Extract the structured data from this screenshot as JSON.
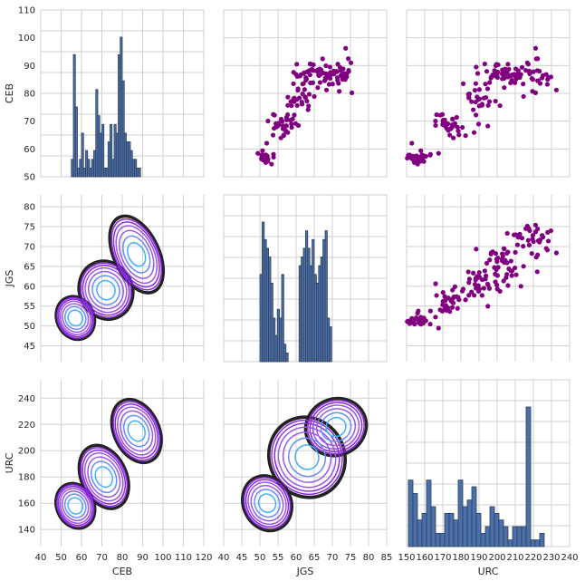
{
  "chart_data": {
    "type": "pairplot",
    "variables": [
      "CEB",
      "JGS",
      "URC"
    ],
    "axes": {
      "CEB": {
        "range": [
          40,
          120
        ],
        "ticks": [
          40,
          50,
          60,
          70,
          80,
          90,
          100,
          110,
          120
        ],
        "ylim": [
          50,
          110
        ],
        "yticks": [
          50,
          60,
          70,
          80,
          90,
          100,
          110
        ]
      },
      "JGS": {
        "range": [
          40,
          85
        ],
        "ticks": [
          40,
          45,
          50,
          55,
          60,
          65,
          70,
          75,
          80,
          85
        ],
        "ylim": [
          41,
          83
        ],
        "yticks": [
          45,
          50,
          55,
          60,
          65,
          70,
          75,
          80
        ]
      },
      "URC": {
        "range": [
          150,
          240
        ],
        "ticks": [
          150,
          160,
          170,
          180,
          190,
          200,
          210,
          220,
          230,
          240
        ],
        "ylim": [
          127,
          254
        ],
        "yticks": [
          140,
          160,
          180,
          200,
          220,
          240
        ]
      }
    },
    "diagonal_histograms": {
      "CEB": {
        "bin_start": 55,
        "bin_width": 1,
        "counts": [
          2,
          14,
          8,
          1,
          2,
          5,
          1,
          3,
          2,
          1,
          2,
          3,
          10,
          7,
          5,
          6,
          1,
          1,
          4,
          6,
          2,
          6,
          5,
          14,
          16,
          11,
          5,
          4,
          4,
          3,
          2,
          2,
          1,
          1
        ]
      },
      "JGS": {
        "bin_start": 50,
        "bin_width": 0.6,
        "counts": [
          10,
          16,
          14,
          13,
          12,
          9,
          5,
          3,
          6,
          5,
          10,
          2,
          1,
          0,
          0,
          0,
          0,
          0,
          11,
          12,
          13,
          15,
          13,
          11,
          14,
          10,
          9,
          11,
          12,
          14,
          15,
          5,
          4
        ]
      },
      "URC": {
        "bin_start": 151,
        "bin_width": 2.5,
        "counts": [
          10,
          8,
          4,
          5,
          10,
          6,
          2,
          2,
          5,
          5,
          4,
          10,
          6,
          7,
          9,
          5,
          2,
          3,
          6,
          5,
          4,
          3,
          1,
          3,
          3,
          3,
          21,
          1,
          1,
          2
        ]
      }
    },
    "upper_scatter_color": "#800080",
    "histogram_color": "#4a6fa9",
    "kde_colormap": [
      "#222222",
      "#8a2be2",
      "#9b59e6",
      "#6a8cff",
      "#3fb0ff"
    ],
    "kde_contours": {
      "JGS_vs_CEB": [
        {
          "cx": 57,
          "cy": 52,
          "rx": 4,
          "ry": 2.5
        },
        {
          "cx": 72,
          "cy": 59,
          "rx": 6,
          "ry": 3.5
        },
        {
          "cx": 87,
          "cy": 68,
          "rx": 5,
          "ry": 5
        }
      ],
      "URC_vs_CEB": [
        {
          "cx": 57,
          "cy": 158,
          "rx": 4,
          "ry": 8
        },
        {
          "cx": 71,
          "cy": 180,
          "rx": 5,
          "ry": 12
        },
        {
          "cx": 87,
          "cy": 215,
          "rx": 5,
          "ry": 12
        }
      ],
      "URC_vs_JGS": [
        {
          "cx": 52,
          "cy": 160,
          "rx": 3,
          "ry": 10
        },
        {
          "cx": 63,
          "cy": 195,
          "rx": 5,
          "ry": 15
        },
        {
          "cx": 71,
          "cy": 218,
          "rx": 4,
          "ry": 10
        }
      ]
    }
  }
}
